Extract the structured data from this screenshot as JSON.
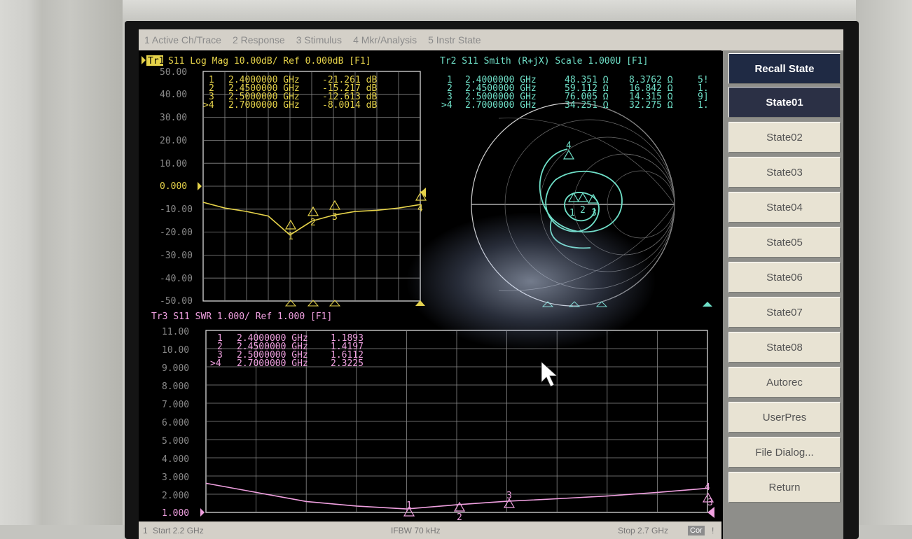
{
  "menu": {
    "items": [
      "1 Active Ch/Trace",
      "2 Response",
      "3 Stimulus",
      "4 Mkr/Analysis",
      "5 Instr State"
    ]
  },
  "trace1": {
    "header": "S11 Log Mag 10.00dB/ Ref 0.000dB [F1]",
    "tag": "Tr1",
    "y_ticks": [
      "50.00",
      "40.00",
      "30.00",
      "20.00",
      "10.00",
      "0.000",
      "-10.00",
      "-20.00",
      "-30.00",
      "-40.00",
      "-50.00"
    ],
    "markers": [
      {
        "num": "1",
        "freq": "2.4000000 GHz",
        "val": "-21.261 dB"
      },
      {
        "num": "2",
        "freq": "2.4500000 GHz",
        "val": "-15.217 dB"
      },
      {
        "num": "3",
        "freq": "2.5000000 GHz",
        "val": "-12.613 dB"
      },
      {
        "num": ">4",
        "freq": "2.7000000 GHz",
        "val": "-8.0014 dB"
      }
    ],
    "color": "#e6d34a"
  },
  "trace2": {
    "header": "Tr2 S11 Smith (R+jX) Scale 1.000U [F1]",
    "markers": [
      {
        "num": "1",
        "freq": "2.4000000 GHz",
        "r": "48.351 Ω",
        "x": "8.3762 Ω",
        "extra": "5!"
      },
      {
        "num": "2",
        "freq": "2.4500000 GHz",
        "r": "59.112 Ω",
        "x": "16.842 Ω",
        "extra": "1."
      },
      {
        "num": "3",
        "freq": "2.5000000 GHz",
        "r": "76.005 Ω",
        "x": "14.315 Ω",
        "extra": "9]"
      },
      {
        "num": ">4",
        "freq": "2.7000000 GHz",
        "r": "34.251 Ω",
        "x": "32.275 Ω",
        "extra": "1."
      }
    ],
    "color": "#6fe0c8"
  },
  "trace3": {
    "header": "Tr3 S11 SWR 1.000/ Ref 1.000 [F1]",
    "y_ticks": [
      "11.00",
      "10.00",
      "9.000",
      "8.000",
      "7.000",
      "6.000",
      "5.000",
      "4.000",
      "3.000",
      "2.000",
      "1.000"
    ],
    "markers": [
      {
        "num": "1",
        "freq": "2.4000000 GHz",
        "val": "1.1893"
      },
      {
        "num": "2",
        "freq": "2.4500000 GHz",
        "val": "1.4197"
      },
      {
        "num": "3",
        "freq": "2.5000000 GHz",
        "val": "1.6112"
      },
      {
        "num": ">4",
        "freq": "2.7000000 GHz",
        "val": "2.3225"
      }
    ],
    "color": "#f0a0e0"
  },
  "softkeys": {
    "title": "Recall State",
    "items": [
      "State01",
      "State02",
      "State03",
      "State04",
      "State05",
      "State06",
      "State07",
      "State08",
      "Autorec",
      "UserPres",
      "File Dialog...",
      "Return"
    ],
    "selected": "State01"
  },
  "status": {
    "channel": "1",
    "start": "Start 2.2 GHz",
    "ifbw": "IFBW 70 kHz",
    "stop": "Stop 2.7 GHz",
    "cor": "Cor",
    "end": "!"
  },
  "chart_data": [
    {
      "type": "line",
      "title": "S11 Log Mag 10.00dB/ Ref 0.000dB [F1]",
      "x_range": [
        2.2,
        2.7
      ],
      "ylim": [
        -50,
        50
      ],
      "series": [
        {
          "name": "Tr1",
          "x": [
            2.2,
            2.25,
            2.3,
            2.35,
            2.4,
            2.45,
            2.5,
            2.55,
            2.6,
            2.65,
            2.7
          ],
          "y": [
            -7,
            -9.5,
            -11,
            -13,
            -21.261,
            -15.217,
            -12.613,
            -11,
            -10.5,
            -9.5,
            -8.0014
          ]
        }
      ]
    },
    {
      "type": "line",
      "title": "S11 SWR 1.000/ Ref 1.000 [F1]",
      "x_range": [
        2.2,
        2.7
      ],
      "ylim": [
        1,
        11
      ],
      "series": [
        {
          "name": "Tr3",
          "x": [
            2.2,
            2.25,
            2.3,
            2.35,
            2.4,
            2.45,
            2.5,
            2.55,
            2.6,
            2.65,
            2.7
          ],
          "y": [
            2.6,
            2.1,
            1.6,
            1.35,
            1.1893,
            1.4197,
            1.6112,
            1.75,
            1.9,
            2.1,
            2.3225
          ]
        }
      ]
    }
  ]
}
